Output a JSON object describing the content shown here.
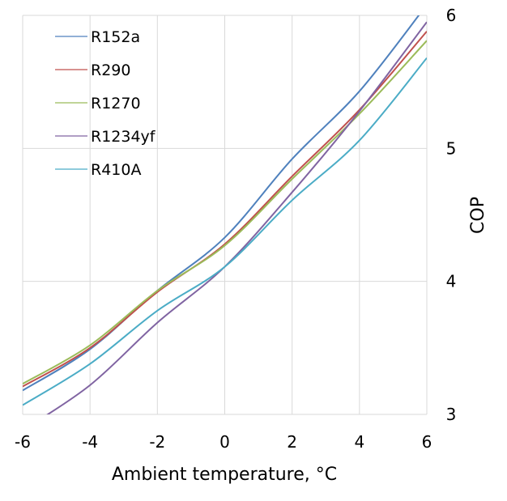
{
  "chart_data": {
    "type": "line",
    "title": "",
    "xlabel": "Ambient temperature, °C",
    "ylabel": "COP",
    "xlim": [
      -6,
      6
    ],
    "ylim": [
      3,
      6
    ],
    "xticks": [
      -6,
      -4,
      -2,
      0,
      2,
      4,
      6
    ],
    "yticks": [
      3,
      4,
      5,
      6
    ],
    "xtick_labels": [
      "-6",
      "-4",
      "-2",
      "0",
      "2",
      "4",
      "6"
    ],
    "ytick_labels": [
      "3",
      "4",
      "5",
      "6"
    ],
    "grid": true,
    "legend_position": "top-left",
    "y_axis_side": "right",
    "x": [
      -6,
      -4,
      -2,
      0,
      2,
      4,
      6
    ],
    "series": [
      {
        "name": "R152a",
        "color": "#4F81BD",
        "values": [
          3.18,
          3.49,
          3.93,
          4.33,
          4.92,
          5.43,
          6.08
        ]
      },
      {
        "name": "R290",
        "color": "#C0504D",
        "values": [
          3.21,
          3.5,
          3.92,
          4.28,
          4.79,
          5.29,
          5.88
        ]
      },
      {
        "name": "R1270",
        "color": "#9BBB59",
        "values": [
          3.23,
          3.52,
          3.93,
          4.27,
          4.77,
          5.26,
          5.81
        ]
      },
      {
        "name": "R1234yf",
        "color": "#8064A2",
        "values": [
          2.88,
          3.22,
          3.69,
          4.11,
          4.67,
          5.28,
          5.95
        ]
      },
      {
        "name": "R410A",
        "color": "#4BACC6",
        "values": [
          3.07,
          3.38,
          3.78,
          4.11,
          4.61,
          5.06,
          5.68
        ]
      }
    ]
  }
}
